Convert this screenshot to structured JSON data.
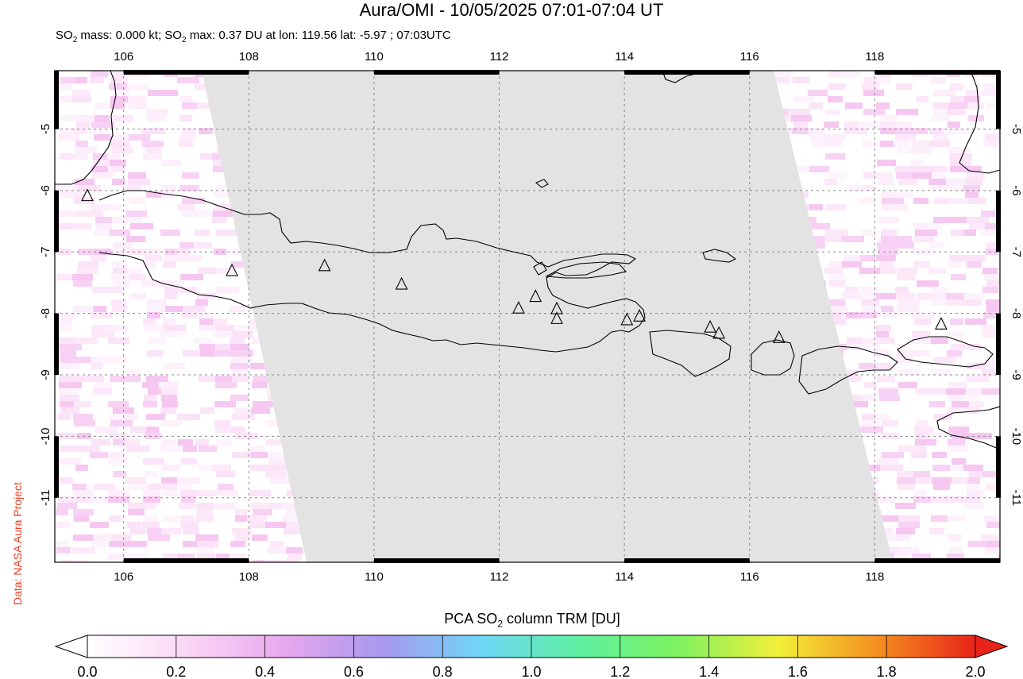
{
  "title": "Aura/OMI - 10/05/2025 07:01-07:04 UT",
  "subtitle": {
    "p1": "SO",
    "sub1": "2",
    "p2": " mass: 0.000 kt; SO",
    "sub2": "2",
    "p3": " max: 0.37 DU at lon: 119.56 lat: -5.97 ; 07:03UTC"
  },
  "credit": "Data: NASA Aura Project",
  "map": {
    "lon_range": [
      104.9,
      120.0
    ],
    "lat_range": [
      -12.05,
      -4.05
    ],
    "lon_ticks": [
      106,
      108,
      110,
      112,
      114,
      116,
      118
    ],
    "lat_ticks": [
      -5,
      -6,
      -7,
      -8,
      -9,
      -10,
      -11
    ],
    "lon_tick_labels": [
      "106",
      "108",
      "110",
      "112",
      "114",
      "116",
      "118"
    ],
    "lat_tick_labels": [
      "-5",
      "-6",
      "-7",
      "-8",
      "-9",
      "-10",
      "-11"
    ],
    "grid": "dashed",
    "colors": {
      "no_data": "#e3e3e3",
      "coast": "#000000",
      "grid": "#888888",
      "so2_low": "#fcd7f6"
    },
    "volcanoes": [
      {
        "lon": 105.42,
        "lat": -6.1
      },
      {
        "lon": 107.73,
        "lat": -7.32
      },
      {
        "lon": 109.21,
        "lat": -7.24
      },
      {
        "lon": 110.44,
        "lat": -7.54
      },
      {
        "lon": 112.31,
        "lat": -7.93
      },
      {
        "lon": 112.58,
        "lat": -7.74
      },
      {
        "lon": 112.92,
        "lat": -7.94
      },
      {
        "lon": 112.92,
        "lat": -8.1
      },
      {
        "lon": 114.04,
        "lat": -8.12
      },
      {
        "lon": 114.24,
        "lat": -8.06
      },
      {
        "lon": 115.37,
        "lat": -8.24
      },
      {
        "lon": 115.51,
        "lat": -8.34
      },
      {
        "lon": 116.47,
        "lat": -8.41
      },
      {
        "lon": 119.06,
        "lat": -8.19
      }
    ]
  },
  "colorbar": {
    "label_pre": "PCA SO",
    "label_sub": "2",
    "label_post": " column TRM [DU]",
    "min": 0.0,
    "max": 2.0,
    "ticks": [
      "0.0",
      "0.2",
      "0.4",
      "0.6",
      "0.8",
      "1.0",
      "1.2",
      "1.4",
      "1.6",
      "1.8",
      "2.0"
    ],
    "stops": [
      "#ffffff",
      "#fbd7f6",
      "#e8a8ee",
      "#a798ee",
      "#6fd7f7",
      "#5ff0a0",
      "#7ef25f",
      "#f2f03a",
      "#f5901f",
      "#e8231a"
    ]
  }
}
